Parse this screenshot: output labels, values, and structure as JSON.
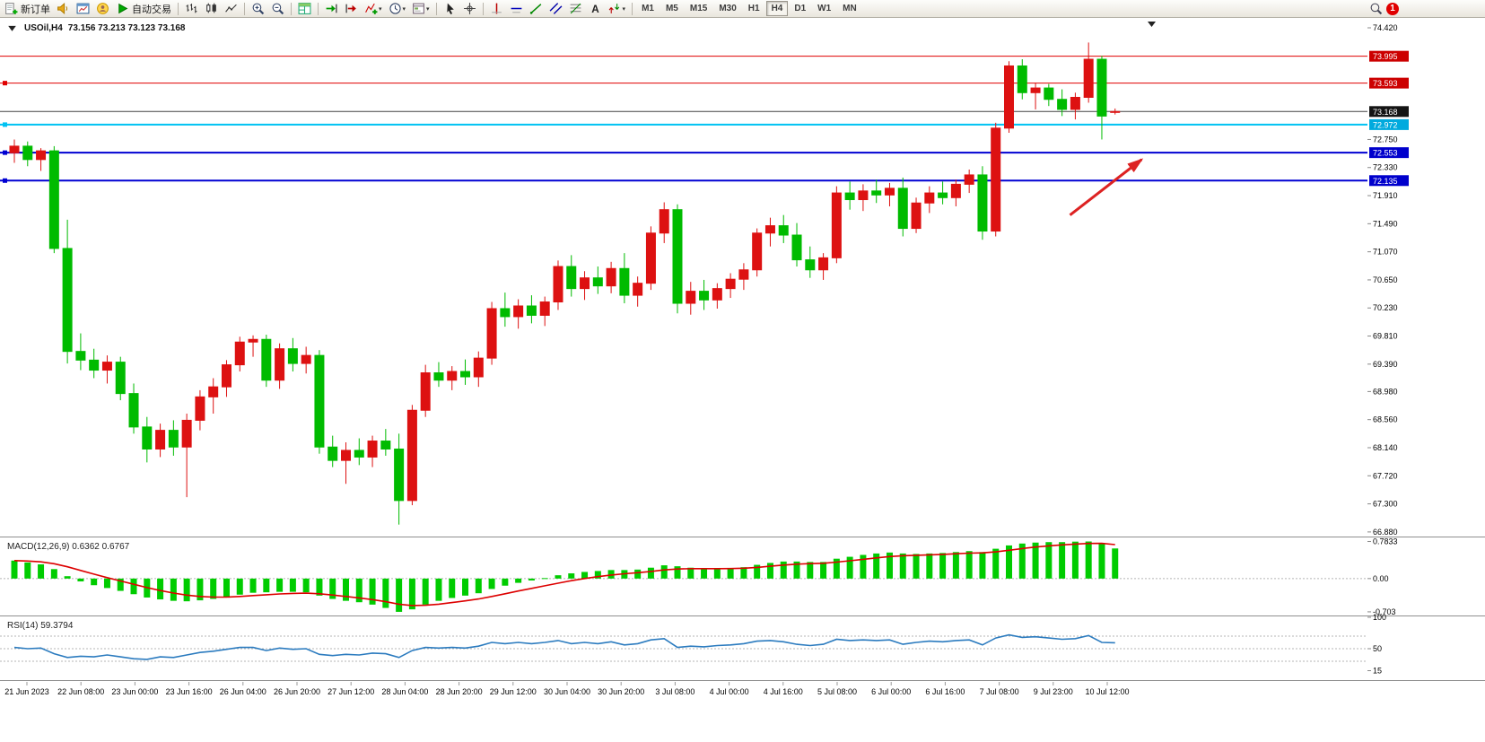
{
  "toolbar": {
    "items": [
      {
        "name": "new-order-button",
        "kind": "labeled",
        "icon": "new-order",
        "label": "新订单"
      },
      {
        "name": "alerts-button",
        "kind": "icon",
        "icon": "horn"
      },
      {
        "name": "market-watch-button",
        "kind": "icon",
        "icon": "chart-window"
      },
      {
        "name": "community-button",
        "kind": "icon",
        "icon": "user-globe"
      },
      {
        "name": "autotrading-button",
        "kind": "labeled",
        "icon": "play",
        "label": "自动交易"
      },
      {
        "kind": "sep"
      },
      {
        "name": "bar-chart-type-button",
        "kind": "icon",
        "icon": "ohlc-bars"
      },
      {
        "name": "candlestick-chart-type-button",
        "kind": "icon",
        "icon": "candles"
      },
      {
        "name": "line-chart-type-button",
        "kind": "icon",
        "icon": "line-chart"
      },
      {
        "kind": "sep"
      },
      {
        "name": "zoom-in-button",
        "kind": "icon",
        "icon": "zoom-in"
      },
      {
        "name": "zoom-out-button",
        "kind": "icon",
        "icon": "zoom-out"
      },
      {
        "kind": "sep"
      },
      {
        "name": "tile-windows-button",
        "kind": "icon",
        "icon": "tile-grid"
      },
      {
        "kind": "sep"
      },
      {
        "name": "auto-scroll-button",
        "kind": "icon",
        "icon": "auto-scroll"
      },
      {
        "name": "chart-shift-button",
        "kind": "icon",
        "icon": "chart-shift"
      },
      {
        "name": "indicators-button",
        "kind": "icon",
        "icon": "indicators",
        "caret": true
      },
      {
        "name": "periods-button",
        "kind": "icon",
        "icon": "clock",
        "caret": true
      },
      {
        "name": "templates-button",
        "kind": "icon",
        "icon": "template",
        "caret": true
      },
      {
        "kind": "sep"
      },
      {
        "name": "cursor-tool-button",
        "kind": "icon",
        "icon": "cursor"
      },
      {
        "name": "crosshair-tool-button",
        "kind": "icon",
        "icon": "crosshair"
      },
      {
        "kind": "sep"
      },
      {
        "name": "vertical-line-tool-button",
        "kind": "icon",
        "icon": "vline"
      },
      {
        "name": "horizontal-line-tool-button",
        "kind": "icon",
        "icon": "hline"
      },
      {
        "name": "trendline-tool-button",
        "kind": "icon",
        "icon": "trendline"
      },
      {
        "name": "channel-tool-button",
        "kind": "icon",
        "icon": "channel"
      },
      {
        "name": "fibonacci-tool-button",
        "kind": "icon",
        "icon": "fibonacci"
      },
      {
        "name": "text-tool-button",
        "kind": "icon",
        "icon": "text-a"
      },
      {
        "name": "arrows-tool-button",
        "kind": "icon",
        "icon": "arrows",
        "caret": true
      },
      {
        "kind": "sep"
      },
      {
        "name": "tf-m1-button",
        "kind": "tf",
        "label": "M1"
      },
      {
        "name": "tf-m5-button",
        "kind": "tf",
        "label": "M5"
      },
      {
        "name": "tf-m15-button",
        "kind": "tf",
        "label": "M15"
      },
      {
        "name": "tf-m30-button",
        "kind": "tf",
        "label": "M30"
      },
      {
        "name": "tf-h1-button",
        "kind": "tf",
        "label": "H1"
      },
      {
        "name": "tf-h4-button",
        "kind": "tf",
        "label": "H4",
        "active": true
      },
      {
        "name": "tf-d1-button",
        "kind": "tf",
        "label": "D1"
      },
      {
        "name": "tf-w1-button",
        "kind": "tf",
        "label": "W1"
      },
      {
        "name": "tf-mn-button",
        "kind": "tf",
        "label": "MN"
      },
      {
        "kind": "spring"
      },
      {
        "name": "search-button",
        "kind": "icon",
        "icon": "magnifier"
      },
      {
        "name": "notification-badge",
        "kind": "badge",
        "label": "1"
      }
    ],
    "active_timeframe": "H4",
    "notification_count": "1"
  },
  "chart": {
    "symbol_period": "USOil,H4",
    "ohlc_text": "73.156 73.213 73.123 73.168"
  },
  "chart_data": [
    {
      "type": "candlestick",
      "symbol": "USOil",
      "timeframe": "H4",
      "up_color": "#dd1111",
      "down_color": "#00bb00",
      "ylim": [
        66.81,
        74.57
      ],
      "y_axis_ticks": [
        "74.420",
        "72.750",
        "72.330",
        "71.910",
        "71.490",
        "71.070",
        "70.650",
        "70.230",
        "69.810",
        "69.390",
        "68.980",
        "68.560",
        "68.140",
        "67.720",
        "67.300",
        "66.880"
      ],
      "x_axis_labels": [
        "21 Jun 2023",
        "22 Jun 08:00",
        "23 Jun 00:00",
        "23 Jun 16:00",
        "26 Jun 04:00",
        "26 Jun 20:00",
        "27 Jun 12:00",
        "28 Jun 04:00",
        "28 Jun 20:00",
        "29 Jun 12:00",
        "30 Jun 04:00",
        "30 Jun 20:00",
        "3 Jul 08:00",
        "4 Jul 00:00",
        "4 Jul 16:00",
        "5 Jul 08:00",
        "6 Jul 00:00",
        "6 Jul 16:00",
        "7 Jul 08:00",
        "9 Jul 23:00",
        "10 Jul 12:00"
      ],
      "ohlc": [
        [
          72.55,
          72.75,
          72.4,
          72.65
        ],
        [
          72.65,
          72.72,
          72.35,
          72.45
        ],
        [
          72.45,
          72.62,
          72.28,
          72.58
        ],
        [
          72.58,
          72.65,
          71.05,
          71.12
        ],
        [
          71.12,
          71.55,
          69.4,
          69.58
        ],
        [
          69.58,
          69.85,
          69.3,
          69.45
        ],
        [
          69.45,
          69.62,
          69.18,
          69.3
        ],
        [
          69.3,
          69.52,
          69.1,
          69.42
        ],
        [
          69.42,
          69.5,
          68.85,
          68.95
        ],
        [
          68.95,
          69.1,
          68.35,
          68.45
        ],
        [
          68.45,
          68.6,
          67.92,
          68.12
        ],
        [
          68.12,
          68.5,
          68.0,
          68.4
        ],
        [
          68.4,
          68.55,
          68.02,
          68.15
        ],
        [
          68.15,
          68.65,
          67.4,
          68.55
        ],
        [
          68.55,
          69.0,
          68.4,
          68.9
        ],
        [
          68.9,
          69.18,
          68.65,
          69.05
        ],
        [
          69.05,
          69.45,
          68.9,
          69.38
        ],
        [
          69.38,
          69.8,
          69.28,
          69.72
        ],
        [
          69.72,
          69.82,
          69.5,
          69.76
        ],
        [
          69.76,
          69.83,
          69.05,
          69.15
        ],
        [
          69.15,
          69.7,
          69.02,
          69.62
        ],
        [
          69.62,
          69.78,
          69.28,
          69.4
        ],
        [
          69.4,
          69.65,
          69.25,
          69.52
        ],
        [
          69.52,
          69.6,
          68.05,
          68.15
        ],
        [
          68.15,
          68.32,
          67.85,
          67.95
        ],
        [
          67.95,
          68.22,
          67.6,
          68.1
        ],
        [
          68.1,
          68.28,
          67.88,
          68.0
        ],
        [
          68.0,
          68.32,
          67.85,
          68.24
        ],
        [
          68.24,
          68.42,
          68.02,
          68.12
        ],
        [
          68.12,
          68.35,
          66.99,
          67.35
        ],
        [
          67.35,
          68.78,
          67.28,
          68.7
        ],
        [
          68.7,
          69.38,
          68.6,
          69.26
        ],
        [
          69.26,
          69.42,
          69.05,
          69.15
        ],
        [
          69.15,
          69.36,
          69.0,
          69.28
        ],
        [
          69.28,
          69.46,
          69.08,
          69.2
        ],
        [
          69.2,
          69.58,
          69.05,
          69.48
        ],
        [
          69.48,
          70.32,
          69.38,
          70.22
        ],
        [
          70.22,
          70.46,
          69.95,
          70.1
        ],
        [
          70.1,
          70.36,
          69.92,
          70.26
        ],
        [
          70.26,
          70.42,
          70.0,
          70.12
        ],
        [
          70.12,
          70.4,
          69.96,
          70.32
        ],
        [
          70.32,
          70.94,
          70.2,
          70.85
        ],
        [
          70.85,
          71.02,
          70.4,
          70.52
        ],
        [
          70.52,
          70.78,
          70.35,
          70.68
        ],
        [
          70.68,
          70.85,
          70.44,
          70.56
        ],
        [
          70.56,
          70.92,
          70.45,
          70.82
        ],
        [
          70.82,
          71.05,
          70.3,
          70.42
        ],
        [
          70.42,
          70.7,
          70.25,
          70.6
        ],
        [
          70.6,
          71.45,
          70.5,
          71.35
        ],
        [
          71.35,
          71.81,
          71.2,
          71.7
        ],
        [
          71.7,
          71.78,
          70.15,
          70.3
        ],
        [
          70.3,
          70.62,
          70.13,
          70.48
        ],
        [
          70.48,
          70.65,
          70.2,
          70.35
        ],
        [
          70.35,
          70.6,
          70.22,
          70.52
        ],
        [
          70.52,
          70.75,
          70.38,
          70.66
        ],
        [
          70.66,
          70.9,
          70.5,
          70.8
        ],
        [
          70.8,
          71.42,
          70.7,
          71.35
        ],
        [
          71.35,
          71.58,
          71.15,
          71.46
        ],
        [
          71.46,
          71.62,
          71.2,
          71.32
        ],
        [
          71.32,
          71.5,
          70.85,
          70.95
        ],
        [
          70.95,
          71.15,
          70.68,
          70.8
        ],
        [
          70.8,
          71.05,
          70.65,
          70.98
        ],
        [
          70.98,
          72.05,
          70.9,
          71.95
        ],
        [
          71.95,
          72.12,
          71.7,
          71.85
        ],
        [
          71.85,
          72.08,
          71.68,
          71.98
        ],
        [
          71.98,
          72.15,
          71.8,
          71.92
        ],
        [
          71.92,
          72.1,
          71.75,
          72.02
        ],
        [
          72.02,
          72.18,
          71.3,
          71.42
        ],
        [
          71.42,
          71.88,
          71.35,
          71.8
        ],
        [
          71.8,
          72.05,
          71.65,
          71.95
        ],
        [
          71.95,
          72.12,
          71.78,
          71.88
        ],
        [
          71.88,
          72.15,
          71.75,
          72.08
        ],
        [
          72.08,
          72.3,
          71.95,
          72.22
        ],
        [
          72.22,
          72.35,
          71.25,
          71.38
        ],
        [
          71.38,
          73.0,
          71.3,
          72.92
        ],
        [
          72.92,
          73.92,
          72.85,
          73.85
        ],
        [
          73.85,
          73.95,
          73.35,
          73.45
        ],
        [
          73.45,
          73.6,
          73.2,
          73.52
        ],
        [
          73.52,
          73.58,
          73.25,
          73.35
        ],
        [
          73.35,
          73.5,
          73.1,
          73.2
        ],
        [
          73.2,
          73.45,
          73.05,
          73.38
        ],
        [
          73.38,
          74.2,
          73.3,
          73.95
        ],
        [
          73.95,
          74.0,
          72.75,
          73.1
        ],
        [
          73.156,
          73.213,
          73.123,
          73.168
        ]
      ],
      "hlines": [
        {
          "name": "resistance-line-73995",
          "price": 73.995,
          "label": "73.995",
          "line_color": "#e00000",
          "badge_bg": "#cc0000",
          "badge_fg": "#ffffff",
          "width": 1,
          "handle": false
        },
        {
          "name": "resistance-line-73593",
          "price": 73.593,
          "label": "73.593",
          "line_color": "#e00000",
          "badge_bg": "#cc0000",
          "badge_fg": "#ffffff",
          "width": 1,
          "handle": true
        },
        {
          "name": "bid-price-line",
          "price": 73.168,
          "label": "73.168",
          "line_color": "#444444",
          "badge_bg": "#141414",
          "badge_fg": "#ffffff",
          "width": 1,
          "handle": false
        },
        {
          "name": "support-line-72972",
          "price": 72.972,
          "label": "72.972",
          "line_color": "#00c2f2",
          "badge_bg": "#00aade",
          "badge_fg": "#ffffff",
          "width": 2,
          "handle": true
        },
        {
          "name": "support-line-72553",
          "price": 72.553,
          "label": "72.553",
          "line_color": "#0000d2",
          "badge_bg": "#0000cc",
          "badge_fg": "#ffffff",
          "width": 2,
          "handle": true
        },
        {
          "name": "support-line-72135",
          "price": 72.135,
          "label": "72.135",
          "line_color": "#0000d2",
          "badge_bg": "#0000cc",
          "badge_fg": "#ffffff",
          "width": 2,
          "handle": true
        }
      ],
      "arrow_annotation": {
        "color": "#dd2222",
        "from": {
          "bar": 79.6,
          "price": 71.62
        },
        "to": {
          "bar": 85.0,
          "price": 72.45
        }
      }
    },
    {
      "type": "bar",
      "name": "MACD",
      "label": "MACD(12,26,9) 0.6362 0.6767",
      "params": "12,26,9",
      "macd_value": 0.6362,
      "signal_value": 0.6767,
      "bar_color": "#00cc00",
      "signal_color": "#dd0000",
      "ylim": [
        -0.78,
        0.85
      ],
      "y_ticks": [
        {
          "v": 0.7833,
          "t": "0.7833"
        },
        {
          "v": 0,
          "t": "0.00"
        },
        {
          "v": -0.703,
          "t": "-0.703"
        }
      ],
      "values": [
        0.38,
        0.34,
        0.3,
        0.2,
        0.05,
        -0.06,
        -0.14,
        -0.2,
        -0.26,
        -0.33,
        -0.4,
        -0.44,
        -0.47,
        -0.48,
        -0.46,
        -0.43,
        -0.39,
        -0.34,
        -0.3,
        -0.29,
        -0.28,
        -0.28,
        -0.29,
        -0.36,
        -0.43,
        -0.47,
        -0.5,
        -0.55,
        -0.62,
        -0.703,
        -0.65,
        -0.55,
        -0.47,
        -0.41,
        -0.36,
        -0.31,
        -0.22,
        -0.15,
        -0.09,
        -0.04,
        0.01,
        0.07,
        0.11,
        0.14,
        0.16,
        0.18,
        0.18,
        0.19,
        0.23,
        0.28,
        0.26,
        0.23,
        0.21,
        0.21,
        0.22,
        0.24,
        0.29,
        0.33,
        0.36,
        0.36,
        0.35,
        0.35,
        0.42,
        0.46,
        0.5,
        0.53,
        0.55,
        0.53,
        0.52,
        0.53,
        0.54,
        0.56,
        0.58,
        0.56,
        0.63,
        0.7,
        0.74,
        0.76,
        0.77,
        0.77,
        0.78,
        0.7833,
        0.75,
        0.6362
      ]
    },
    {
      "type": "line",
      "name": "RSI",
      "label": "RSI(14) 59.3794",
      "value": 59.3794,
      "line_color": "#2b7bbf",
      "levels": [
        70,
        50,
        30
      ],
      "ylim": [
        0,
        100
      ],
      "y_ticks": [
        {
          "v": 100,
          "t": "100"
        },
        {
          "v": 50,
          "t": "50"
        },
        {
          "v": 15,
          "t": "15"
        }
      ],
      "values": [
        52,
        50,
        51,
        42,
        36,
        38,
        37,
        40,
        37,
        34,
        33,
        37,
        36,
        40,
        44,
        46,
        49,
        52,
        52,
        47,
        51,
        49,
        50,
        41,
        39,
        41,
        40,
        43,
        42,
        36,
        47,
        52,
        51,
        52,
        51,
        54,
        60,
        58,
        60,
        58,
        60,
        63,
        58,
        60,
        58,
        61,
        56,
        58,
        64,
        66,
        52,
        54,
        53,
        55,
        56,
        58,
        62,
        63,
        61,
        57,
        55,
        57,
        65,
        63,
        64,
        63,
        64,
        57,
        60,
        62,
        61,
        63,
        64,
        56,
        67,
        72,
        68,
        69,
        67,
        65,
        66,
        71,
        60,
        59.3794
      ]
    }
  ]
}
